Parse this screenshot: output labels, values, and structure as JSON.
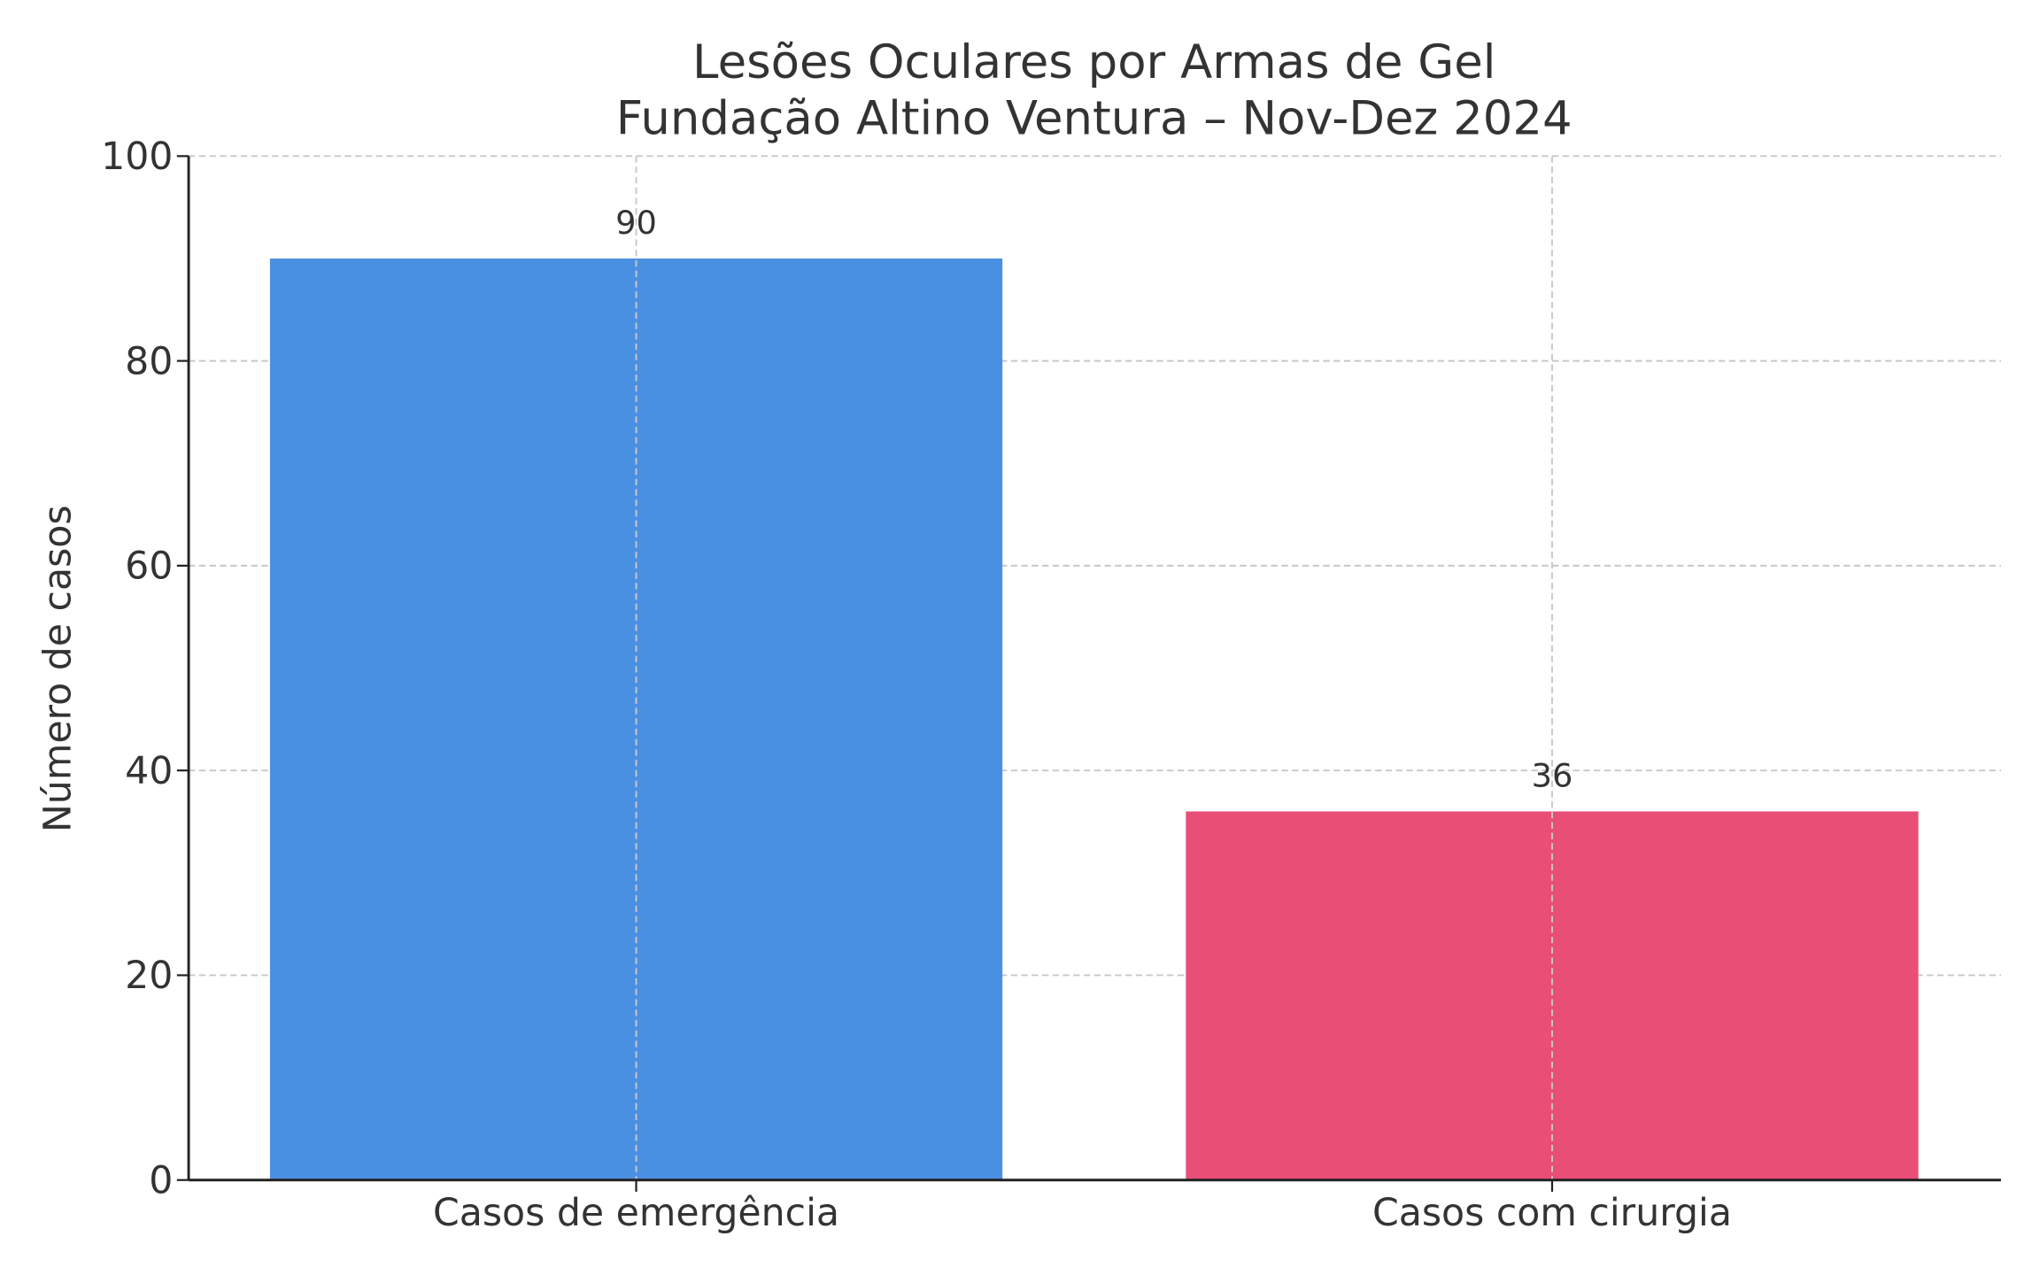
{
  "chart_data": {
    "type": "bar",
    "title": "Lesões Oculares por Armas de Gel\nFundação Altino Ventura – Nov-Dez 2024",
    "title_lines": [
      "Lesões Oculares por Armas de Gel",
      "Fundação Altino Ventura – Nov-Dez 2024"
    ],
    "xlabel": "",
    "ylabel": "Número de casos",
    "categories": [
      "Casos de emergência",
      "Casos com cirurgia"
    ],
    "values": [
      90,
      36
    ],
    "data_labels": [
      "90",
      "36"
    ],
    "colors": [
      "#4a90e2",
      "#e94e77"
    ],
    "ylim": [
      0,
      100
    ],
    "yticks": [
      0,
      20,
      40,
      60,
      80,
      100
    ],
    "grid": true,
    "grid_style": "dashed"
  }
}
